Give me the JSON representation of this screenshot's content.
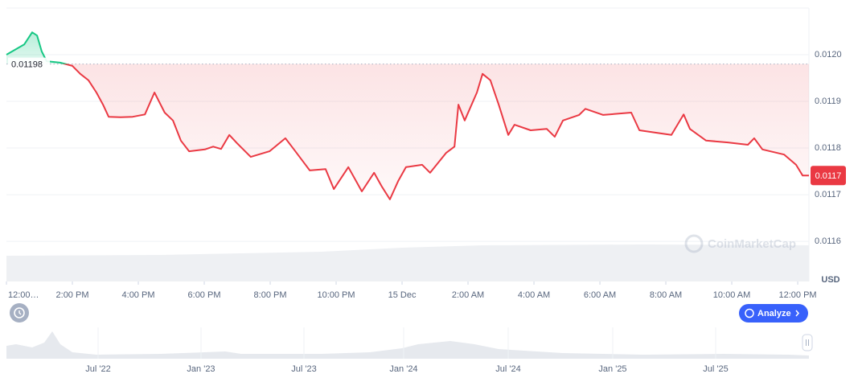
{
  "chart_data": {
    "type": "line",
    "x": [
      0,
      0.54,
      0.78,
      0.93,
      1.07,
      1.22,
      1.63,
      2.0,
      2.24,
      2.49,
      2.73,
      2.93,
      3.1,
      3.46,
      3.83,
      4.2,
      4.49,
      4.8,
      5.05,
      5.29,
      5.54,
      6.02,
      6.27,
      6.51,
      6.76,
      7.0,
      7.41,
      7.98,
      8.46,
      8.71,
      9.2,
      9.68,
      9.93,
      10.37,
      10.78,
      11.15,
      11.39,
      11.63,
      11.88,
      12.12,
      12.61,
      12.85,
      13.34,
      13.59,
      13.71,
      13.9,
      14.27,
      14.44,
      14.68,
      14.93,
      15.22,
      15.41,
      15.9,
      16.39,
      16.63,
      16.88,
      17.37,
      17.56,
      18.1,
      18.95,
      19.2,
      19.68,
      20.17,
      20.54,
      20.73,
      21.22,
      21.88,
      22.49,
      22.68,
      22.93,
      23.59,
      23.95,
      24.15,
      24.34
    ],
    "series": [
      {
        "values": [
          0.012,
          0.012022,
          0.012048,
          0.012041,
          0.012007,
          0.011986,
          0.011983,
          0.011976,
          0.011959,
          0.011945,
          0.011919,
          0.011893,
          0.011867,
          0.011866,
          0.011867,
          0.011872,
          0.011919,
          0.011876,
          0.011859,
          0.011816,
          0.011793,
          0.011797,
          0.011803,
          0.011798,
          0.011828,
          0.01181,
          0.011781,
          0.011793,
          0.011821,
          0.011798,
          0.011752,
          0.011755,
          0.011712,
          0.011759,
          0.011707,
          0.011747,
          0.011717,
          0.01169,
          0.011729,
          0.011759,
          0.011764,
          0.011747,
          0.01179,
          0.011803,
          0.011893,
          0.011859,
          0.011919,
          0.011959,
          0.011945,
          0.011893,
          0.011828,
          0.01185,
          0.011838,
          0.011841,
          0.011824,
          0.011859,
          0.011871,
          0.011884,
          0.011871,
          0.011876,
          0.011838,
          0.011833,
          0.011828,
          0.011872,
          0.011841,
          0.011816,
          0.011812,
          0.011807,
          0.011821,
          0.011797,
          0.011786,
          0.011764,
          0.011741,
          0.011741
        ]
      }
    ],
    "color_up": "#16c784",
    "color_down": "#ea3943",
    "baseline": 0.01198,
    "last_price_label": "0.0117",
    "currency": "USD",
    "xlim": [
      0,
      24.34
    ],
    "xticks": [
      {
        "value": 0,
        "label": "12:00…"
      },
      {
        "value": 2,
        "label": "2:00 PM"
      },
      {
        "value": 4,
        "label": "4:00 PM"
      },
      {
        "value": 6,
        "label": "6:00 PM"
      },
      {
        "value": 8,
        "label": "8:00 PM"
      },
      {
        "value": 10,
        "label": "10:00 PM"
      },
      {
        "value": 12,
        "label": "15 Dec"
      },
      {
        "value": 14,
        "label": "2:00 AM"
      },
      {
        "value": 16,
        "label": "4:00 AM"
      },
      {
        "value": 18,
        "label": "6:00 AM"
      },
      {
        "value": 20,
        "label": "8:00 AM"
      },
      {
        "value": 22,
        "label": "10:00 AM"
      },
      {
        "value": 24,
        "label": "12:00 PM"
      }
    ],
    "ylim": [
      0.011514,
      0.0121
    ],
    "yticks": [
      0.0116,
      0.0117,
      0.0118,
      0.0119,
      {
        "value": 0.012,
        "label": "0.0120"
      }
    ],
    "grid": true
  },
  "watermark": "CoinMarketCap",
  "analyze_button": "Analyze",
  "navigator": {
    "labels": [
      "Jul '22",
      "Jan '23",
      "Jul '23",
      "Jan '24",
      "Jul '24",
      "Jan '25",
      "Jul '25"
    ]
  }
}
